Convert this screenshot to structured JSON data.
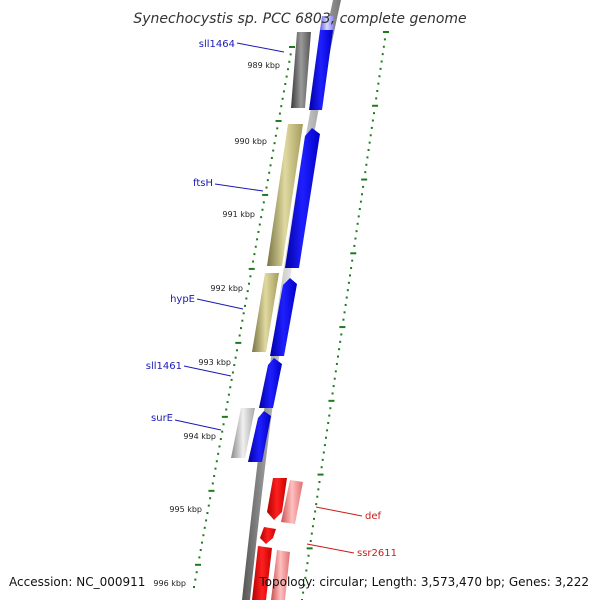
{
  "title": "Synechocystis sp. PCC 6803, complete genome",
  "footer": {
    "accession": "Accession: NC_000911",
    "topology": "Topology: circular; Length: 3,573,470 bp; Genes: 3,222"
  },
  "ticks": [
    "989 kbp",
    "990 kbp",
    "991 kbp",
    "992 kbp",
    "993 kbp",
    "994 kbp",
    "995 kbp",
    "996 kbp"
  ],
  "genes": [
    {
      "label": "sll1464",
      "strand": "reverse",
      "color": "#1a1ab4"
    },
    {
      "label": "ftsH",
      "strand": "reverse",
      "color": "#1a1ab4"
    },
    {
      "label": "hypE",
      "strand": "reverse",
      "color": "#1a1ab4"
    },
    {
      "label": "sll1461",
      "strand": "reverse",
      "color": "#1a1ab4"
    },
    {
      "label": "surE",
      "strand": "reverse",
      "color": "#1a1ab4"
    },
    {
      "label": "def",
      "strand": "forward",
      "color": "#cc1a1a"
    },
    {
      "label": "ssr2611",
      "strand": "forward",
      "color": "#cc1a1a"
    }
  ],
  "colors": {
    "reverse_gene": "#0000ee",
    "forward_gene": "#ee0000",
    "backbone": "#888888",
    "tick": "#1f7a1f",
    "cog_khaki": "#bdb76b",
    "cog_gray": "#707070",
    "cog_silver": "#c0c0c0",
    "cog_pink": "#f08080"
  }
}
